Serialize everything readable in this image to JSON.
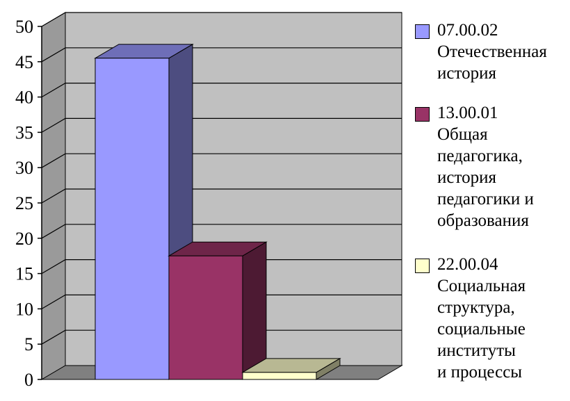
{
  "chart_data": {
    "type": "bar",
    "title": "",
    "xlabel": "",
    "ylabel": "",
    "ylim": [
      0,
      50
    ],
    "y_ticks": [
      0,
      5,
      10,
      15,
      20,
      25,
      30,
      35,
      40,
      45,
      50
    ],
    "grid": true,
    "legend_position": "right",
    "style": "3d-clustered-column",
    "series": [
      {
        "name": "07.00.02 Отечественная история",
        "value": 45.5,
        "color": "#9999ff"
      },
      {
        "name": "13.00.01 Общая педагогика, история педагогики и образования",
        "value": 17.5,
        "color": "#993366"
      },
      {
        "name": "22.00.04 Социальная структура, социальные институты и процессы",
        "value": 1,
        "color": "#ffffcc"
      }
    ]
  },
  "legend": {
    "items": [
      {
        "lines": [
          "07.00.02",
          "Отечественная",
          "история"
        ],
        "color": "#9999ff"
      },
      {
        "lines": [
          "13.00.01",
          "Общая",
          "педагогика,",
          "история",
          "педагогики и",
          "образования"
        ],
        "color": "#993366"
      },
      {
        "lines": [
          "22.00.04",
          "Социальная",
          "структура,",
          "социальные",
          "институты",
          "и процессы"
        ],
        "color": "#ffffcc"
      }
    ]
  }
}
